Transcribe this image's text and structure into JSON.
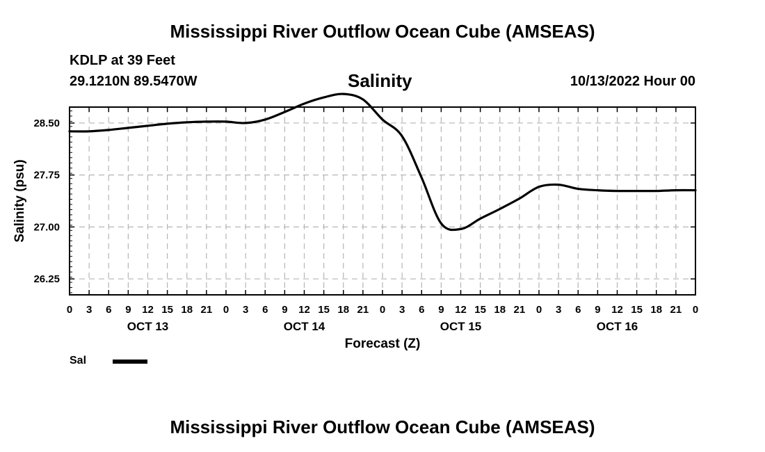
{
  "header": {
    "title": "Mississippi River Outflow Ocean Cube (AMSEAS)",
    "station": "KDLP at 39 Feet",
    "coords": "29.1210N  89.5470W",
    "variable_title": "Salinity",
    "datetime": "10/13/2022 Hour 00"
  },
  "footer": {
    "title": "Mississippi River Outflow Ocean Cube (AMSEAS)"
  },
  "legend": {
    "label": "Sal"
  },
  "colors": {
    "line": "#000000",
    "grid": "#b5b5b5",
    "axis": "#000000"
  },
  "chart_data": {
    "type": "line",
    "title": "Salinity",
    "xlabel": "Forecast (Z)",
    "ylabel": "Salinity (psu)",
    "xlim": [
      0,
      96
    ],
    "ylim": [
      26.02,
      28.73
    ],
    "grid": true,
    "x_tick_hours": [
      0,
      3,
      6,
      9,
      12,
      15,
      18,
      21,
      24,
      27,
      30,
      33,
      36,
      39,
      42,
      45,
      48,
      51,
      54,
      57,
      60,
      63,
      66,
      69,
      72,
      75,
      78,
      81,
      84,
      87,
      90,
      93,
      96
    ],
    "x_tick_labels": [
      "0",
      "3",
      "6",
      "9",
      "12",
      "15",
      "18",
      "21",
      "0",
      "3",
      "6",
      "9",
      "12",
      "15",
      "18",
      "21",
      "0",
      "3",
      "6",
      "9",
      "12",
      "15",
      "18",
      "21",
      "0",
      "3",
      "6",
      "9",
      "12",
      "15",
      "18",
      "21",
      "0"
    ],
    "day_labels": [
      {
        "hour": 12,
        "label": "OCT 13"
      },
      {
        "hour": 36,
        "label": "OCT 14"
      },
      {
        "hour": 60,
        "label": "OCT 15"
      },
      {
        "hour": 84,
        "label": "OCT 16"
      }
    ],
    "y_ticks": [
      26.25,
      27.0,
      27.75,
      28.5
    ],
    "y_tick_labels": [
      "26.25",
      "27.00",
      "27.75",
      "28.50"
    ],
    "series": [
      {
        "name": "Sal",
        "x": [
          0,
          3,
          6,
          9,
          12,
          15,
          18,
          21,
          24,
          27,
          30,
          33,
          36,
          39,
          42,
          45,
          48,
          51,
          54,
          57,
          60,
          63,
          66,
          69,
          72,
          75,
          78,
          81,
          84,
          87,
          90,
          93,
          96
        ],
        "values": [
          28.38,
          28.38,
          28.4,
          28.43,
          28.46,
          28.49,
          28.51,
          28.52,
          28.52,
          28.5,
          28.55,
          28.66,
          28.78,
          28.87,
          28.92,
          28.84,
          28.55,
          28.31,
          27.71,
          27.05,
          26.97,
          27.12,
          27.26,
          27.41,
          27.58,
          27.61,
          27.55,
          27.53,
          27.52,
          27.52,
          27.52,
          27.53,
          27.53
        ]
      }
    ]
  }
}
